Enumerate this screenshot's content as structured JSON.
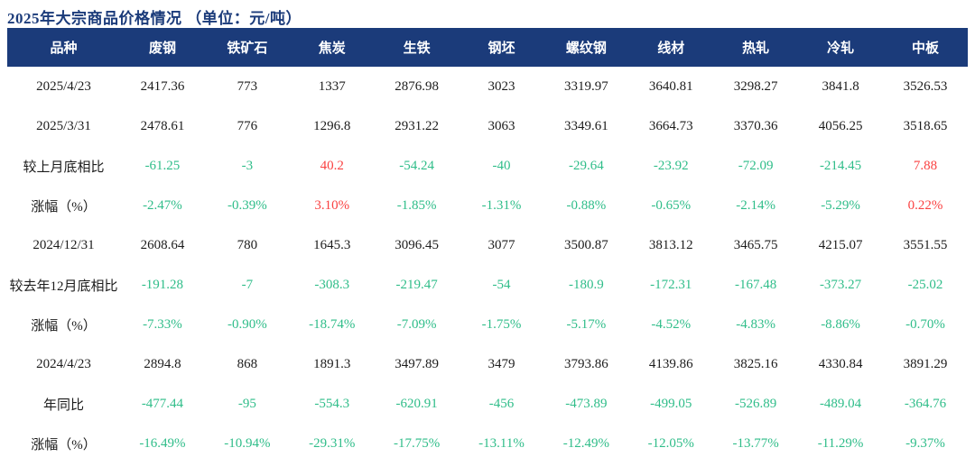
{
  "title": "2025年大宗商品价格情况 （单位：元/吨）",
  "colors": {
    "header_bg": "#1b3b7a",
    "title_text": "#1b3b7a",
    "up_red": "#fa4141",
    "down_green": "#2fbd89",
    "body_text": "#1c1c1c"
  },
  "chart_data": {
    "type": "table",
    "title": "2025年大宗商品价格情况 （单位：元/吨）",
    "columns": [
      "品种",
      "废钢",
      "铁矿石",
      "焦炭",
      "生铁",
      "钢坯",
      "螺纹钢",
      "线材",
      "热轧",
      "冷轧",
      "中板"
    ],
    "rows": [
      {
        "label": "2025/4/23",
        "type": "plain",
        "values": [
          "2417.36",
          "773",
          "1337",
          "2876.98",
          "3023",
          "3319.97",
          "3640.81",
          "3298.27",
          "3841.8",
          "3526.53"
        ]
      },
      {
        "label": "2025/3/31",
        "type": "plain",
        "values": [
          "2478.61",
          "776",
          "1296.8",
          "2931.22",
          "3063",
          "3349.61",
          "3664.73",
          "3370.36",
          "4056.25",
          "3518.65"
        ]
      },
      {
        "label": "较上月底相比",
        "type": "delta",
        "values": [
          "-61.25",
          "-3",
          "40.2",
          "-54.24",
          "-40",
          "-29.64",
          "-23.92",
          "-72.09",
          "-214.45",
          "7.88"
        ]
      },
      {
        "label": "涨幅（%）",
        "type": "delta",
        "values": [
          "-2.47%",
          "-0.39%",
          "3.10%",
          "-1.85%",
          "-1.31%",
          "-0.88%",
          "-0.65%",
          "-2.14%",
          "-5.29%",
          "0.22%"
        ]
      },
      {
        "label": "2024/12/31",
        "type": "plain",
        "values": [
          "2608.64",
          "780",
          "1645.3",
          "3096.45",
          "3077",
          "3500.87",
          "3813.12",
          "3465.75",
          "4215.07",
          "3551.55"
        ]
      },
      {
        "label": "较去年12月底相比",
        "type": "delta",
        "values": [
          "-191.28",
          "-7",
          "-308.3",
          "-219.47",
          "-54",
          "-180.9",
          "-172.31",
          "-167.48",
          "-373.27",
          "-25.02"
        ]
      },
      {
        "label": "涨幅（%）",
        "type": "delta",
        "values": [
          "-7.33%",
          "-0.90%",
          "-18.74%",
          "-7.09%",
          "-1.75%",
          "-5.17%",
          "-4.52%",
          "-4.83%",
          "-8.86%",
          "-0.70%"
        ]
      },
      {
        "label": "2024/4/23",
        "type": "plain",
        "values": [
          "2894.8",
          "868",
          "1891.3",
          "3497.89",
          "3479",
          "3793.86",
          "4139.86",
          "3825.16",
          "4330.84",
          "3891.29"
        ]
      },
      {
        "label": "年同比",
        "type": "delta",
        "values": [
          "-477.44",
          "-95",
          "-554.3",
          "-620.91",
          "-456",
          "-473.89",
          "-499.05",
          "-526.89",
          "-489.04",
          "-364.76"
        ]
      },
      {
        "label": "涨幅（%）",
        "type": "delta",
        "values": [
          "-16.49%",
          "-10.94%",
          "-29.31%",
          "-17.75%",
          "-13.11%",
          "-12.49%",
          "-12.05%",
          "-13.77%",
          "-11.29%",
          "-9.37%"
        ]
      }
    ]
  }
}
